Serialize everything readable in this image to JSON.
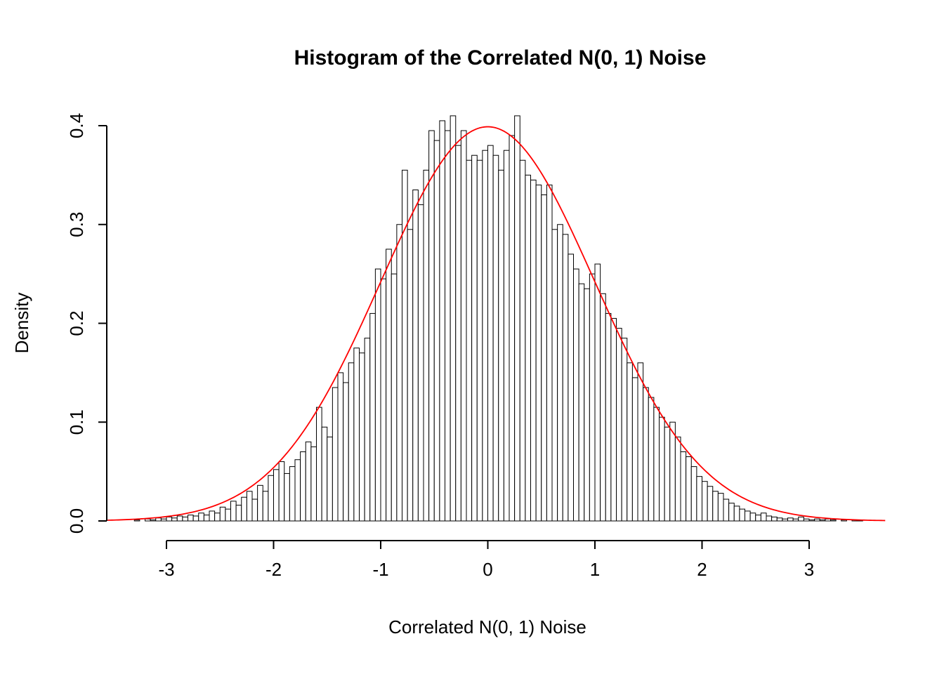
{
  "chart_data": {
    "type": "bar",
    "subtype": "histogram-with-density-overlay",
    "title": "Histogram of the Correlated N(0, 1) Noise",
    "xlabel": "Correlated N(0, 1) Noise",
    "ylabel": "Density",
    "x_tick_values": [
      -3,
      -2,
      -1,
      0,
      1,
      2,
      3
    ],
    "x_tick_labels": [
      "-3",
      "-2",
      "-1",
      "0",
      "1",
      "2",
      "3"
    ],
    "y_tick_values": [
      0,
      0.1,
      0.2,
      0.3,
      0.4
    ],
    "y_tick_labels": [
      "0.0",
      "0.1",
      "0.2",
      "0.3",
      "0.4"
    ],
    "xlim": [
      -3,
      3
    ],
    "ylim": [
      0,
      0.4
    ],
    "grid": false,
    "legend": "none",
    "bar_fill": "#ffffff",
    "bar_stroke": "#000000",
    "bins": {
      "start": -3.3,
      "width": 0.05,
      "densities": [
        0.001,
        0,
        0.002,
        0.001,
        0.003,
        0.002,
        0.004,
        0.003,
        0.005,
        0.004,
        0.006,
        0.005,
        0.008,
        0.006,
        0.01,
        0.008,
        0.014,
        0.012,
        0.02,
        0.016,
        0.024,
        0.03,
        0.022,
        0.036,
        0.03,
        0.046,
        0.052,
        0.06,
        0.048,
        0.055,
        0.062,
        0.07,
        0.08,
        0.075,
        0.115,
        0.095,
        0.085,
        0.135,
        0.15,
        0.14,
        0.16,
        0.175,
        0.17,
        0.185,
        0.21,
        0.255,
        0.245,
        0.275,
        0.25,
        0.3,
        0.355,
        0.295,
        0.335,
        0.32,
        0.355,
        0.395,
        0.385,
        0.405,
        0.395,
        0.41,
        0.38,
        0.395,
        0.365,
        0.37,
        0.365,
        0.375,
        0.38,
        0.37,
        0.355,
        0.375,
        0.39,
        0.41,
        0.365,
        0.35,
        0.345,
        0.34,
        0.33,
        0.34,
        0.295,
        0.3,
        0.29,
        0.27,
        0.255,
        0.24,
        0.235,
        0.25,
        0.26,
        0.23,
        0.21,
        0.205,
        0.195,
        0.185,
        0.16,
        0.145,
        0.16,
        0.135,
        0.125,
        0.115,
        0.105,
        0.095,
        0.1,
        0.085,
        0.07,
        0.065,
        0.055,
        0.045,
        0.04,
        0.035,
        0.03,
        0.028,
        0.022,
        0.018,
        0.015,
        0.012,
        0.01,
        0.008,
        0.006,
        0.008,
        0.005,
        0.004,
        0.003,
        0.002,
        0.003,
        0.002,
        0.004,
        0.002,
        0.001,
        0.002,
        0.001,
        0.002,
        0.001,
        0,
        0.001,
        0,
        0.001,
        0.001
      ]
    },
    "overlay_curve": {
      "name": "normal-density",
      "mean": 0,
      "sd": 1,
      "peak": 0.3989,
      "color": "#ff0000",
      "x_range": [
        -3.55,
        3.72
      ]
    }
  }
}
